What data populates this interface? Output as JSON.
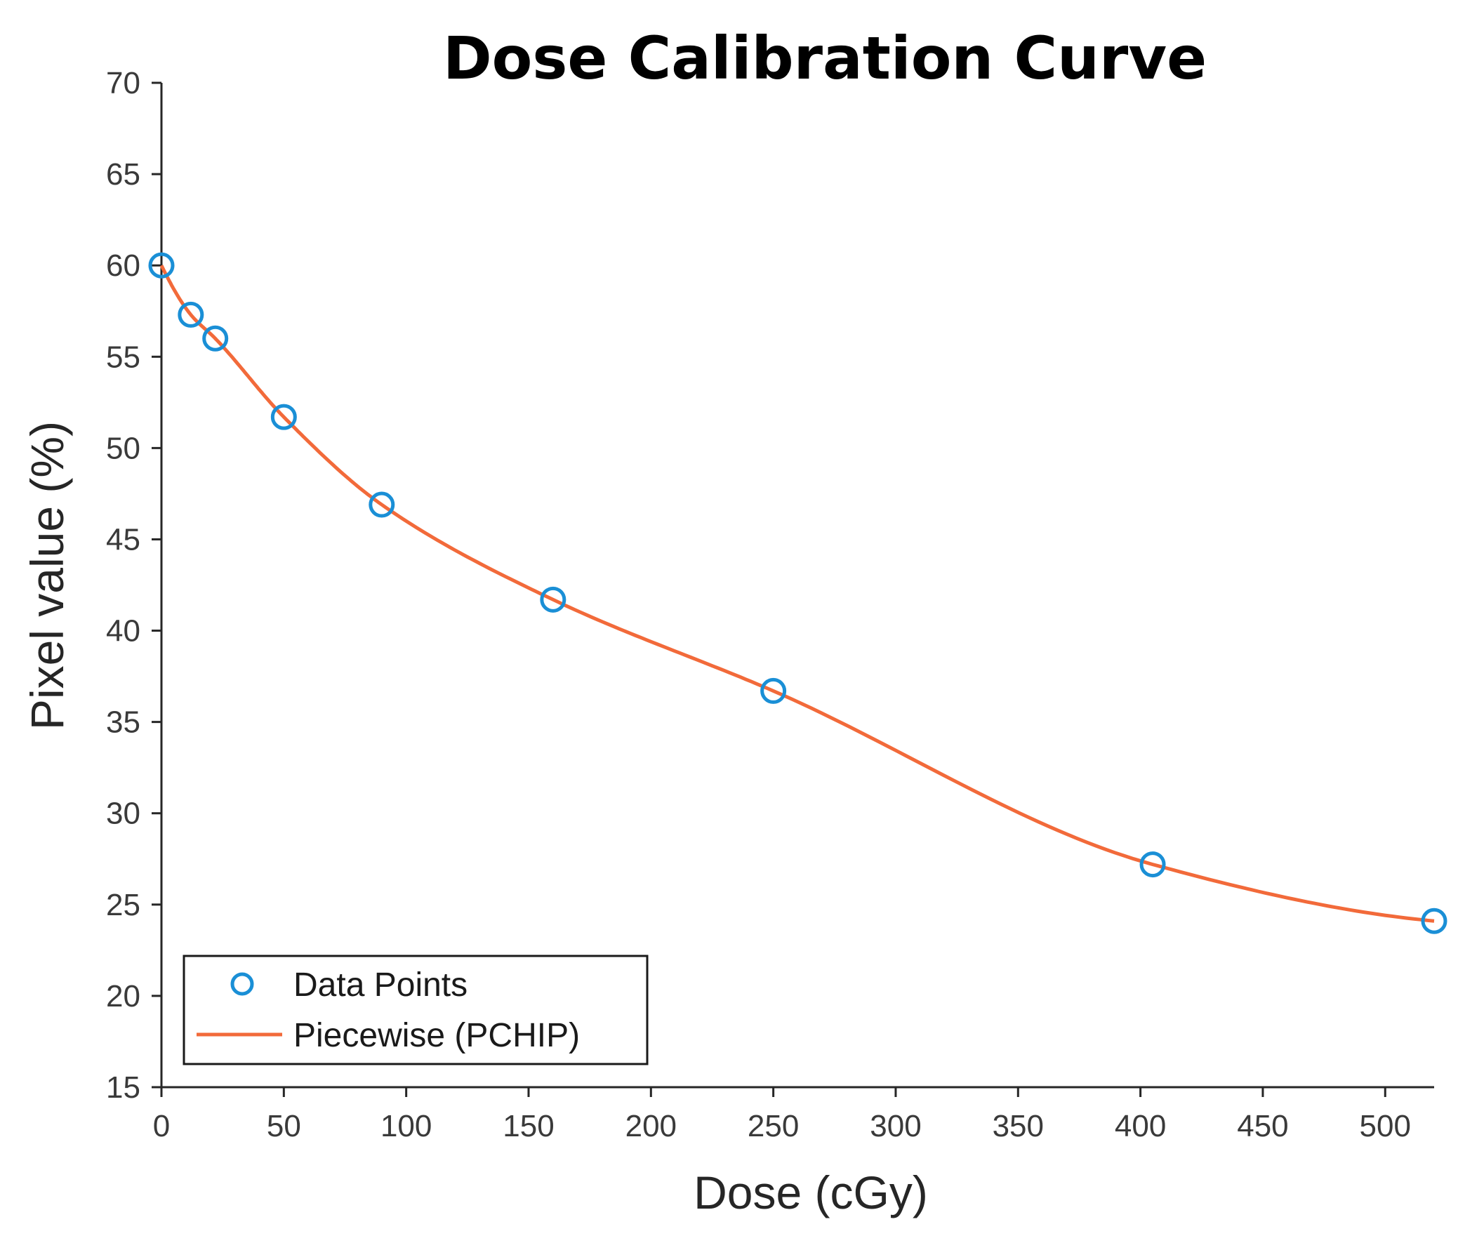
{
  "chart_data": {
    "type": "line",
    "title": "Dose Calibration Curve",
    "xlabel": "Dose (cGy)",
    "ylabel": "Pixel value (%)",
    "xlim": [
      0,
      520
    ],
    "ylim": [
      15,
      70
    ],
    "x_ticks": [
      0,
      50,
      100,
      150,
      200,
      250,
      300,
      350,
      400,
      450,
      500
    ],
    "y_ticks": [
      15,
      20,
      25,
      30,
      35,
      40,
      45,
      50,
      55,
      60,
      65,
      70
    ],
    "grid": false,
    "legend_position": "bottom-left",
    "series": [
      {
        "name": "Data Points",
        "style": "markers",
        "marker": "circle",
        "color": "#1a8fd6",
        "x": [
          0,
          12,
          22,
          50,
          90,
          160,
          250,
          405,
          520
        ],
        "y": [
          60.0,
          57.3,
          56.0,
          51.7,
          46.9,
          41.7,
          36.7,
          27.2,
          24.1
        ]
      },
      {
        "name": "Piecewise (PCHIP)",
        "style": "line",
        "color": "#f26a3a",
        "x": [
          0,
          12,
          22,
          50,
          90,
          160,
          250,
          405,
          520
        ],
        "y": [
          60.0,
          57.3,
          56.0,
          51.7,
          46.9,
          41.7,
          36.7,
          27.2,
          24.1
        ]
      }
    ]
  }
}
